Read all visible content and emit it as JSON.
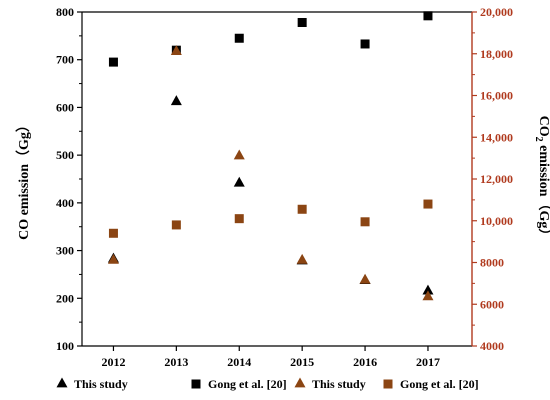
{
  "chart_data": {
    "type": "scatter",
    "title": "",
    "x": [
      2012,
      2013,
      2014,
      2015,
      2016,
      2017
    ],
    "xlim": [
      2011.5,
      2017.7
    ],
    "x_ticks": [
      "2012",
      "2013",
      "2014",
      "2015",
      "2016",
      "2017"
    ],
    "y_left": {
      "label": "CO emission（Gg）",
      "ylim": [
        100,
        800
      ],
      "ticks": [
        "100",
        "200",
        "300",
        "400",
        "500",
        "600",
        "700",
        "800"
      ],
      "color": "#000000"
    },
    "y_right": {
      "label_prefix": "CO",
      "label_sub": "2",
      "label_suffix": " emission（Gg）",
      "ylim": [
        4000,
        20000
      ],
      "ticks": [
        "4000",
        "6000",
        "8000",
        "10,000",
        "12,000",
        "14,000",
        "16,000",
        "18,000",
        "20,000"
      ],
      "color": "#b03a1e"
    },
    "grid": false,
    "legend_position": "bottom",
    "series": [
      {
        "name": "This study",
        "axis": "left",
        "marker": "triangle",
        "color": "#000000",
        "values": [
          282,
          612,
          441,
          278,
          237,
          215
        ]
      },
      {
        "name": "Gong et al. [20]",
        "axis": "left",
        "marker": "square",
        "color": "#000000",
        "values": [
          695,
          720,
          745,
          778,
          733,
          792
        ]
      },
      {
        "name": "This study",
        "axis": "right",
        "marker": "triangle",
        "color": "#8b4513",
        "values": [
          8100,
          18100,
          13100,
          8100,
          7150,
          6350
        ]
      },
      {
        "name": "Gong et al. [20]",
        "axis": "right",
        "marker": "square",
        "color": "#8b4513",
        "values": [
          9400,
          9800,
          10100,
          10550,
          9950,
          10800
        ]
      }
    ]
  }
}
